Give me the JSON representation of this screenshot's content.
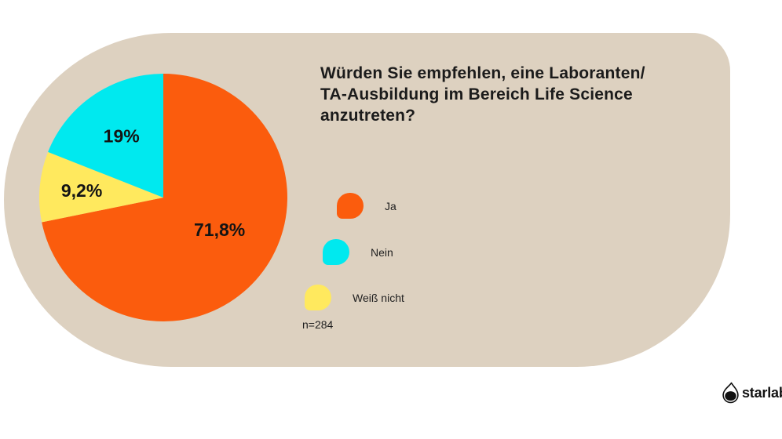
{
  "page": {
    "background_color": "#ffffff",
    "card_color": "#DDD1C0",
    "text_color": "#1b1b1b"
  },
  "title": {
    "text": "Würden Sie empfehlen, eine Laboranten/\nTA-Ausbildung im Bereich Life Science\nanzutreten?"
  },
  "chart_data": {
    "type": "pie",
    "title": "Würden Sie empfehlen, eine Laboranten/TA-Ausbildung im Bereich Life Science anzutreten?",
    "start_angle_deg": 0,
    "direction": "clockwise",
    "label_color": "#141414",
    "slices": [
      {
        "label": "Ja",
        "value_percent": 71.8,
        "display": "71,8%",
        "color": "#FB5C0D"
      },
      {
        "label": "Weiß nicht",
        "value_percent": 9.2,
        "display": "9,2%",
        "color": "#FFE95E"
      },
      {
        "label": "Nein",
        "value_percent": 19.0,
        "display": "19%",
        "color": "#00E9EF"
      }
    ],
    "legend": {
      "position": "right",
      "items": [
        {
          "label": "Ja",
          "color": "#FB5C0D"
        },
        {
          "label": "Nein",
          "color": "#00E9EF"
        },
        {
          "label": "Weiß nicht",
          "color": "#FFE95E"
        }
      ]
    },
    "sample_size": "n=284"
  },
  "footer": {
    "brand": "starlab"
  }
}
